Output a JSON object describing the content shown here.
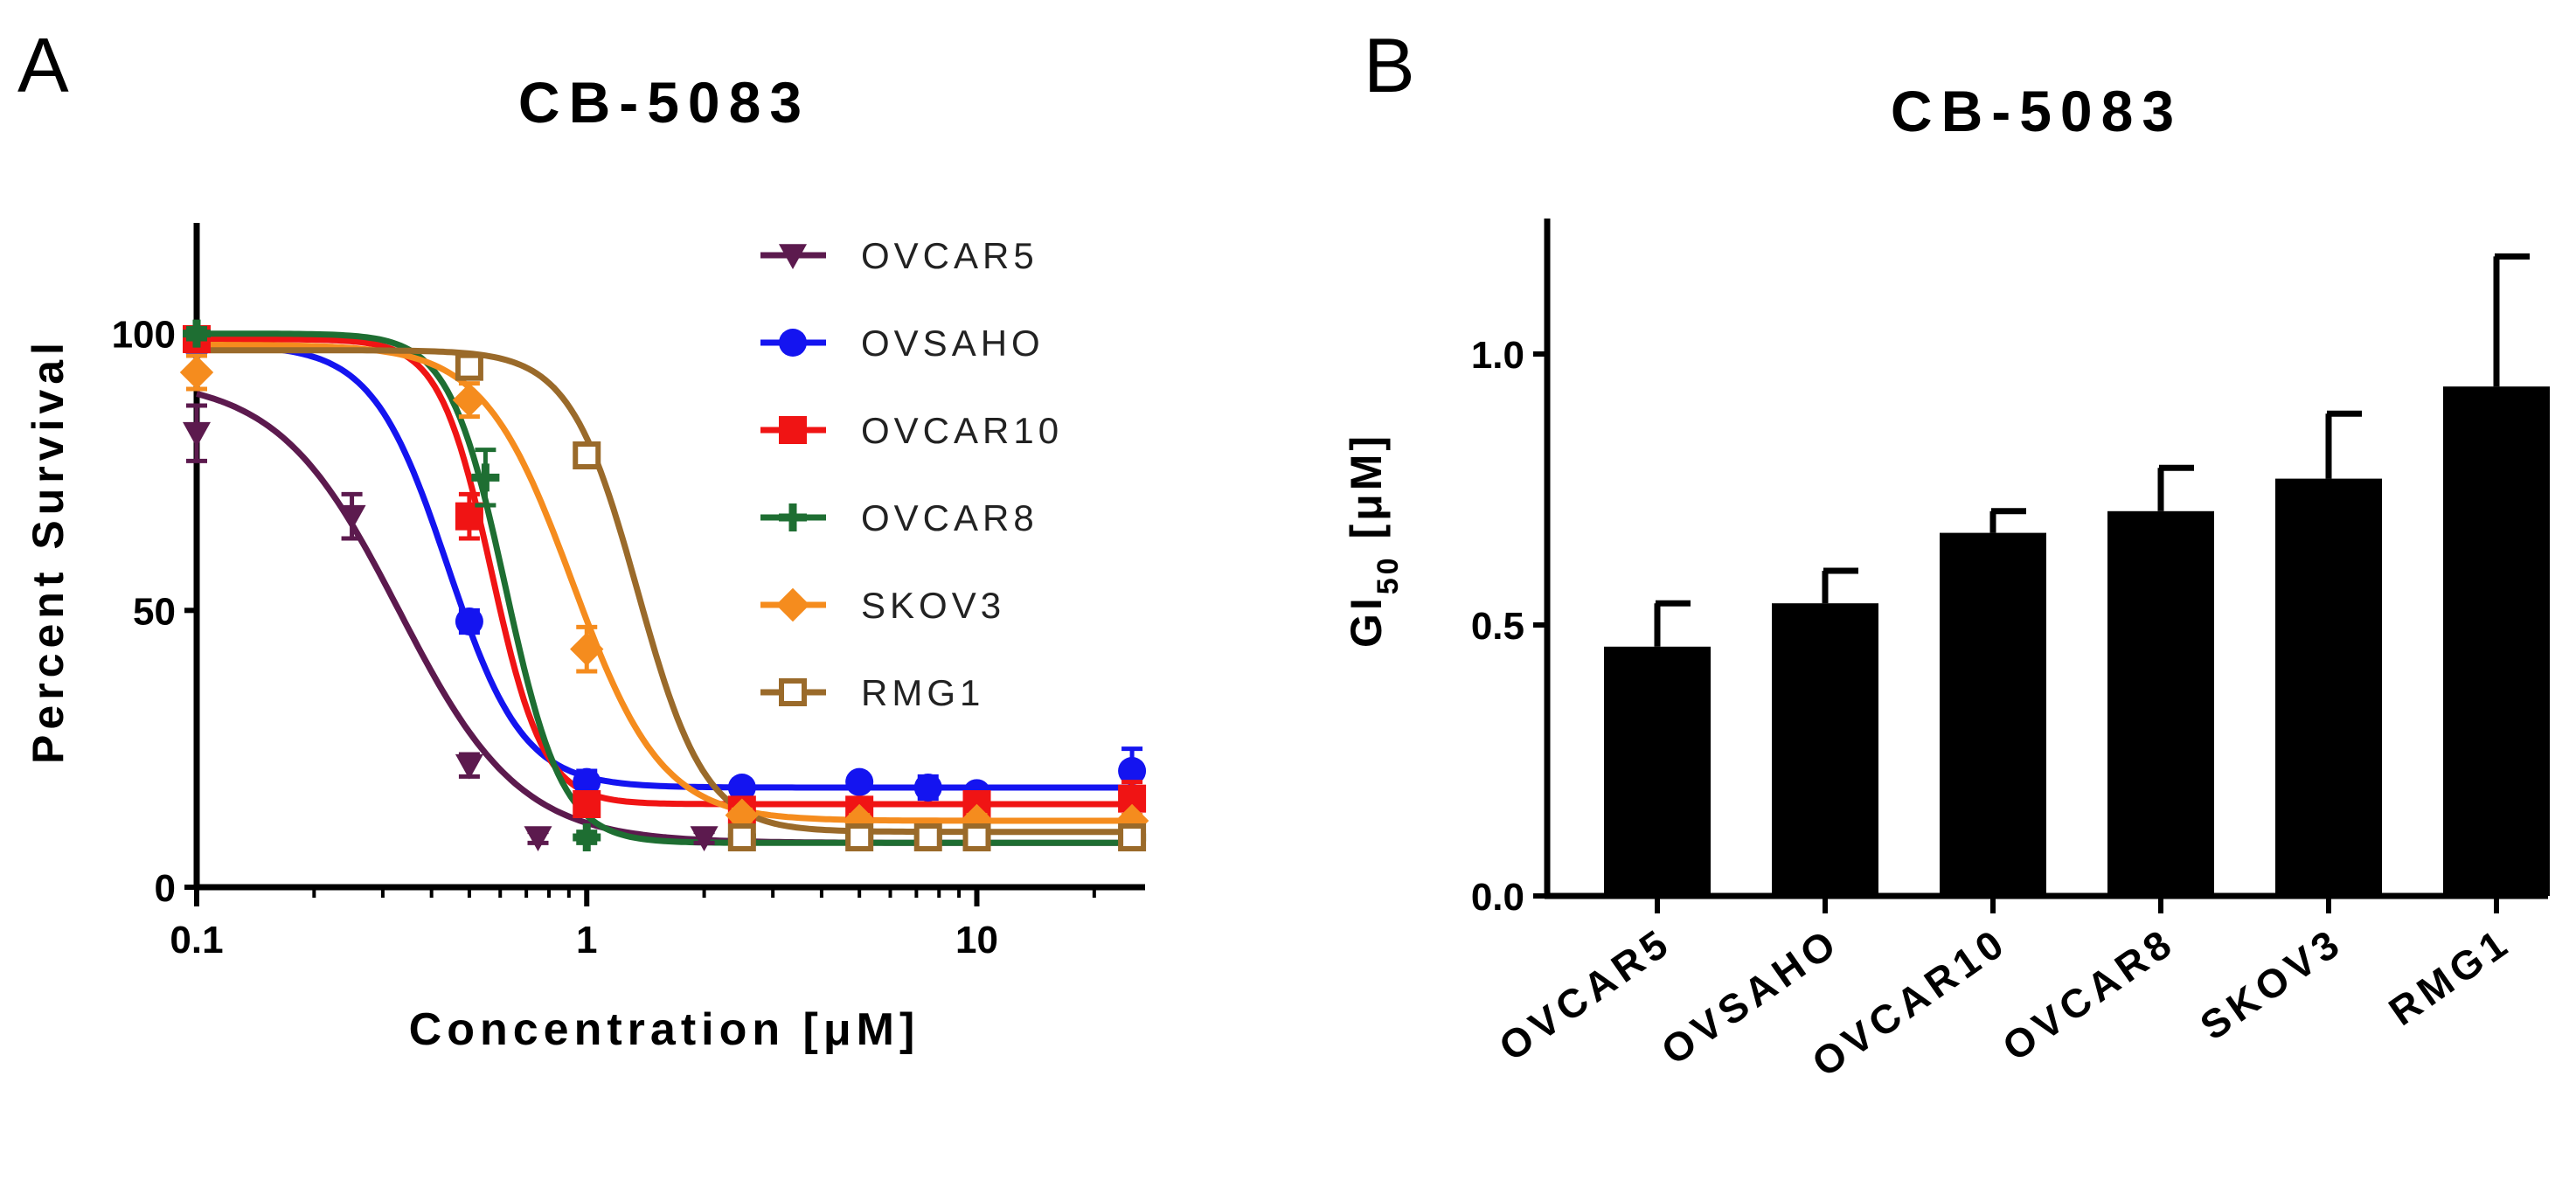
{
  "panels": {
    "a_label": "A",
    "b_label": "B"
  },
  "chart_data": [
    {
      "type": "line",
      "panel": "A",
      "title": "CB-5083",
      "xlabel": "Concentration [μM]",
      "ylabel": "Percent Survival",
      "xscale": "log",
      "xlim": [
        0.1,
        27
      ],
      "ylim": [
        0,
        120
      ],
      "xticks": [
        {
          "value": 0.1,
          "label": "0.1"
        },
        {
          "value": 1,
          "label": "1"
        },
        {
          "value": 10,
          "label": "10"
        }
      ],
      "yticks": [
        {
          "value": 0,
          "label": "0"
        },
        {
          "value": 50,
          "label": "50"
        },
        {
          "value": 100,
          "label": "100"
        }
      ],
      "legend_position": "top-right",
      "series": [
        {
          "name": "OVCAR5",
          "color": "#5c1a4e",
          "marker": "triangle-down",
          "fit": {
            "bottom": 8,
            "top": 92,
            "ec50": 0.33,
            "hill": 2.8
          },
          "points": [
            {
              "x": 0.1,
              "y": 82,
              "err": 5
            },
            {
              "x": 0.25,
              "y": 67,
              "err": 4
            },
            {
              "x": 0.5,
              "y": 22,
              "err": 2
            },
            {
              "x": 0.75,
              "y": 9,
              "err": 1
            },
            {
              "x": 2,
              "y": 9,
              "err": 1
            },
            {
              "x": 5,
              "y": 9,
              "err": 1
            },
            {
              "x": 10,
              "y": 9,
              "err": 1
            },
            {
              "x": 25,
              "y": 9,
              "err": 1
            }
          ]
        },
        {
          "name": "OVSAHO",
          "color": "#1414f0",
          "marker": "circle",
          "fit": {
            "bottom": 18,
            "top": 98,
            "ec50": 0.44,
            "hill": 4.5
          },
          "points": [
            {
              "x": 0.1,
              "y": 98,
              "err": 2
            },
            {
              "x": 0.5,
              "y": 48,
              "err": 2
            },
            {
              "x": 1,
              "y": 19,
              "err": 2
            },
            {
              "x": 2.5,
              "y": 18,
              "err": 1
            },
            {
              "x": 5,
              "y": 19,
              "err": 1
            },
            {
              "x": 7.5,
              "y": 18,
              "err": 2
            },
            {
              "x": 10,
              "y": 17,
              "err": 1
            },
            {
              "x": 25,
              "y": 21,
              "err": 4
            }
          ]
        },
        {
          "name": "OVCAR10",
          "color": "#f01414",
          "marker": "square",
          "fit": {
            "bottom": 15,
            "top": 99,
            "ec50": 0.57,
            "hill": 6.5
          },
          "points": [
            {
              "x": 0.1,
              "y": 99,
              "err": 2
            },
            {
              "x": 0.5,
              "y": 67,
              "err": 4
            },
            {
              "x": 1,
              "y": 15,
              "err": 2
            },
            {
              "x": 2.5,
              "y": 14,
              "err": 2
            },
            {
              "x": 5,
              "y": 14,
              "err": 2
            },
            {
              "x": 10,
              "y": 15,
              "err": 1
            },
            {
              "x": 25,
              "y": 16,
              "err": 3
            }
          ]
        },
        {
          "name": "OVCAR8",
          "color": "#1e6e32",
          "marker": "plus",
          "fit": {
            "bottom": 8,
            "top": 100,
            "ec50": 0.62,
            "hill": 6
          },
          "points": [
            {
              "x": 0.1,
              "y": 100,
              "err": 1
            },
            {
              "x": 0.55,
              "y": 74,
              "err": 5
            },
            {
              "x": 1,
              "y": 9,
              "err": 1
            },
            {
              "x": 2.5,
              "y": 9,
              "err": 1
            },
            {
              "x": 5,
              "y": 9,
              "err": 1
            },
            {
              "x": 7.5,
              "y": 9,
              "err": 1
            },
            {
              "x": 10,
              "y": 9,
              "err": 1
            },
            {
              "x": 25,
              "y": 9,
              "err": 1
            }
          ]
        },
        {
          "name": "SKOV3",
          "color": "#f58c1e",
          "marker": "diamond",
          "fit": {
            "bottom": 12,
            "top": 98,
            "ec50": 0.92,
            "hill": 3.8
          },
          "points": [
            {
              "x": 0.1,
              "y": 93,
              "err": 3
            },
            {
              "x": 0.5,
              "y": 88,
              "err": 3
            },
            {
              "x": 1,
              "y": 43,
              "err": 4
            },
            {
              "x": 2.5,
              "y": 13,
              "err": 1
            },
            {
              "x": 5,
              "y": 12,
              "err": 1
            },
            {
              "x": 10,
              "y": 12,
              "err": 1
            },
            {
              "x": 25,
              "y": 12,
              "err": 1
            }
          ]
        },
        {
          "name": "RMG1",
          "color": "#9a6a2a",
          "marker": "open-square",
          "fit": {
            "bottom": 10,
            "top": 97,
            "ec50": 1.35,
            "hill": 5
          },
          "points": [
            {
              "x": 0.5,
              "y": 94,
              "err": 2
            },
            {
              "x": 1,
              "y": 78,
              "err": 2
            },
            {
              "x": 2.5,
              "y": 9,
              "err": 1
            },
            {
              "x": 5,
              "y": 9,
              "err": 1
            },
            {
              "x": 7.5,
              "y": 9,
              "err": 1
            },
            {
              "x": 10,
              "y": 9,
              "err": 1
            },
            {
              "x": 25,
              "y": 9,
              "err": 1
            }
          ]
        }
      ]
    },
    {
      "type": "bar",
      "panel": "B",
      "title": "CB-5083",
      "xlabel": "",
      "ylabel": "GI50 [μM]",
      "ylabel_parts": {
        "main": "GI",
        "sub": "50",
        "unit": " [μM]"
      },
      "ylim": [
        0,
        1.25
      ],
      "yticks": [
        {
          "value": 0,
          "label": "0.0"
        },
        {
          "value": 0.5,
          "label": "0.5"
        },
        {
          "value": 1.0,
          "label": "1.0"
        }
      ],
      "categories": [
        "OVCAR5",
        "OVSAHO",
        "OVCAR10",
        "OVCAR8",
        "SKOV3",
        "RMG1"
      ],
      "values": [
        0.46,
        0.54,
        0.67,
        0.71,
        0.77,
        0.94
      ],
      "errors": [
        0.08,
        0.06,
        0.04,
        0.08,
        0.12,
        0.24
      ],
      "color": "#000000"
    }
  ]
}
